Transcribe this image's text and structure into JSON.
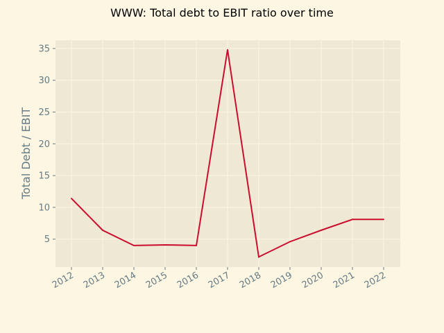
{
  "chart_data": {
    "type": "line",
    "title": "WWW: Total debt to EBIT ratio over time",
    "xlabel": "",
    "ylabel": "Total Debt / EBIT",
    "x": [
      "2012",
      "2013",
      "2014",
      "2015",
      "2016",
      "2017",
      "2018",
      "2019",
      "2020",
      "2021",
      "2022"
    ],
    "series": [
      {
        "values": [
          11.4,
          6.4,
          4.0,
          4.1,
          4.0,
          34.8,
          2.2,
          4.6,
          6.4,
          8.1,
          8.1
        ]
      }
    ],
    "ylim": [
      0.6,
      36.3
    ],
    "yticks": [
      5,
      10,
      15,
      20,
      25,
      30,
      35
    ],
    "grid": true,
    "colors": {
      "page_background": "#fdf6e3",
      "plot_background": "#eee8d5",
      "grid": "#fdf6e3",
      "line": "#cb0c2f",
      "tick_text": "#657b83"
    }
  }
}
